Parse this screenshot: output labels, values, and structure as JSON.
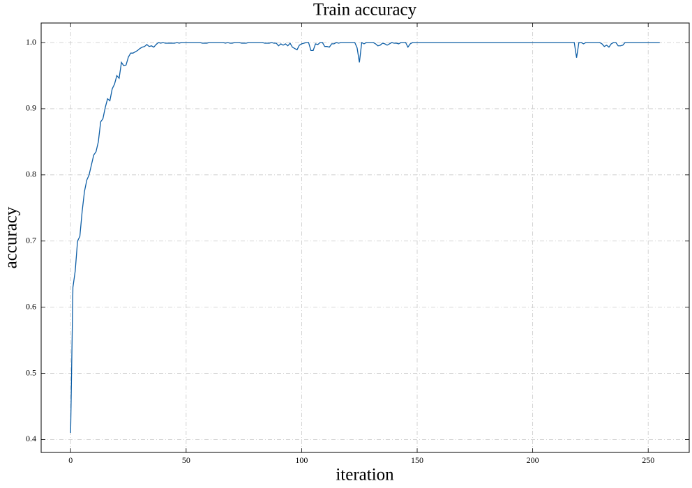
{
  "chart_data": {
    "type": "line",
    "title": "Train accuracy",
    "x_label": "iteration",
    "y_label": "accuracy",
    "x": [
      0,
      1,
      2,
      3,
      4,
      5,
      6,
      7,
      8,
      9,
      10,
      11,
      12,
      13,
      14,
      15,
      16,
      17,
      18,
      19,
      20,
      21,
      22,
      23,
      24,
      25,
      26,
      27,
      28,
      29,
      30,
      31,
      32,
      33,
      34,
      35,
      36,
      37,
      38,
      39,
      40,
      41,
      42,
      43,
      44,
      45,
      46,
      47,
      48,
      49,
      50,
      51,
      52,
      53,
      54,
      55,
      56,
      57,
      58,
      59,
      60,
      61,
      62,
      63,
      64,
      65,
      66,
      67,
      68,
      69,
      70,
      71,
      72,
      73,
      74,
      75,
      76,
      77,
      78,
      79,
      80,
      81,
      82,
      83,
      84,
      85,
      86,
      87,
      88,
      89,
      90,
      91,
      92,
      93,
      94,
      95,
      96,
      97,
      98,
      99,
      100,
      101,
      102,
      103,
      104,
      105,
      106,
      107,
      108,
      109,
      110,
      111,
      112,
      113,
      114,
      115,
      116,
      117,
      118,
      119,
      120,
      121,
      122,
      123,
      124,
      125,
      126,
      127,
      128,
      129,
      130,
      131,
      132,
      133,
      134,
      135,
      136,
      137,
      138,
      139,
      140,
      141,
      142,
      143,
      144,
      145,
      146,
      147,
      148,
      149,
      150,
      151,
      152,
      153,
      154,
      155,
      156,
      157,
      158,
      159,
      160,
      161,
      162,
      163,
      164,
      165,
      166,
      167,
      168,
      169,
      170,
      171,
      172,
      173,
      174,
      175,
      176,
      177,
      178,
      179,
      180,
      181,
      182,
      183,
      184,
      185,
      186,
      187,
      188,
      189,
      190,
      191,
      192,
      193,
      194,
      195,
      196,
      197,
      198,
      199,
      200,
      201,
      202,
      203,
      204,
      205,
      206,
      207,
      208,
      209,
      210,
      211,
      212,
      213,
      214,
      215,
      216,
      217,
      218,
      219,
      220,
      221,
      222,
      223,
      224,
      225,
      226,
      227,
      228,
      229,
      230,
      231,
      232,
      233,
      234,
      235,
      236,
      237,
      238,
      239,
      240,
      241,
      242,
      243,
      244,
      245,
      246,
      247,
      248,
      249,
      250,
      251,
      252,
      253,
      254,
      255
    ],
    "series": [
      {
        "name": "accuracy",
        "color": "#0C5DA5",
        "values": [
          0.41,
          0.63,
          0.655,
          0.7,
          0.707,
          0.745,
          0.775,
          0.792,
          0.8,
          0.815,
          0.83,
          0.835,
          0.85,
          0.88,
          0.885,
          0.902,
          0.915,
          0.912,
          0.93,
          0.937,
          0.95,
          0.946,
          0.97,
          0.965,
          0.966,
          0.978,
          0.984,
          0.984,
          0.986,
          0.988,
          0.991,
          0.993,
          0.994,
          0.997,
          0.994,
          0.995,
          0.993,
          0.997,
          1.0,
          0.999,
          1.0,
          0.999,
          0.999,
          0.999,
          0.999,
          0.999,
          1.0,
          0.999,
          1.0,
          1.0,
          1.0,
          1.0,
          1.0,
          1.0,
          1.0,
          1.0,
          1.0,
          0.999,
          0.999,
          0.999,
          1.0,
          1.0,
          1.0,
          1.0,
          1.0,
          1.0,
          1.0,
          0.999,
          1.0,
          0.999,
          0.999,
          1.0,
          1.0,
          1.0,
          0.999,
          0.999,
          0.999,
          1.0,
          1.0,
          1.0,
          1.0,
          1.0,
          1.0,
          1.0,
          0.999,
          0.999,
          0.999,
          1.0,
          0.999,
          0.999,
          0.995,
          0.998,
          0.996,
          0.998,
          0.995,
          0.999,
          0.993,
          0.991,
          0.989,
          0.996,
          0.998,
          0.999,
          1.0,
          1.0,
          0.988,
          0.988,
          0.998,
          0.997,
          1.0,
          1.0,
          0.994,
          0.994,
          0.993,
          0.998,
          0.998,
          1.0,
          0.999,
          1.0,
          1.0,
          1.0,
          1.0,
          1.0,
          1.0,
          1.0,
          0.992,
          0.97,
          1.0,
          0.998,
          1.0,
          1.0,
          1.0,
          1.0,
          0.998,
          0.995,
          0.996,
          0.999,
          0.998,
          0.996,
          0.998,
          1.0,
          0.999,
          0.999,
          0.998,
          1.0,
          1.0,
          1.0,
          0.993,
          0.998,
          1.0,
          1.0,
          1.0,
          1.0,
          1.0,
          1.0,
          1.0,
          1.0,
          1.0,
          1.0,
          1.0,
          1.0,
          1.0,
          1.0,
          1.0,
          1.0,
          1.0,
          1.0,
          1.0,
          1.0,
          1.0,
          1.0,
          1.0,
          1.0,
          1.0,
          1.0,
          1.0,
          1.0,
          1.0,
          1.0,
          1.0,
          1.0,
          1.0,
          1.0,
          1.0,
          1.0,
          1.0,
          1.0,
          1.0,
          1.0,
          1.0,
          1.0,
          1.0,
          1.0,
          1.0,
          1.0,
          1.0,
          1.0,
          1.0,
          1.0,
          1.0,
          1.0,
          1.0,
          1.0,
          1.0,
          1.0,
          1.0,
          1.0,
          1.0,
          1.0,
          1.0,
          1.0,
          1.0,
          1.0,
          1.0,
          1.0,
          1.0,
          1.0,
          1.0,
          1.0,
          1.0,
          0.977,
          1.0,
          1.0,
          0.998,
          1.0,
          1.0,
          1.0,
          1.0,
          1.0,
          1.0,
          1.0,
          0.998,
          0.994,
          0.996,
          0.993,
          0.998,
          1.0,
          1.0,
          0.995,
          0.995,
          0.996,
          1.0,
          1.0,
          1.0,
          1.0,
          1.0,
          1.0,
          1.0,
          1.0,
          1.0,
          1.0,
          1.0,
          1.0,
          1.0,
          1.0,
          1.0,
          1.0
        ]
      }
    ],
    "xlim": [
      -12.75,
      267.75
    ],
    "xticks": [
      0,
      50,
      100,
      150,
      200,
      250
    ],
    "ylim": [
      0.3805,
      1.0295
    ],
    "yticks": [
      0.4,
      0.5,
      0.6,
      0.7,
      0.8,
      0.9,
      {
        "value": 1,
        "label": "1.0"
      }
    ],
    "grid": true
  }
}
